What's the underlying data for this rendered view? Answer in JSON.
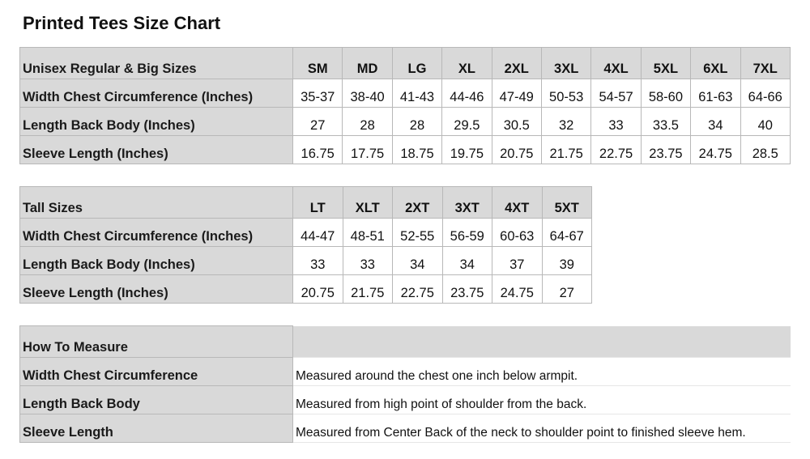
{
  "title": "Printed Tees Size Chart",
  "regular": {
    "header": "Unisex Regular & Big Sizes",
    "sizes": [
      "SM",
      "MD",
      "LG",
      "XL",
      "2XL",
      "3XL",
      "4XL",
      "5XL",
      "6XL",
      "7XL"
    ],
    "rows": [
      {
        "label": "Width Chest  Circumference (Inches)",
        "values": [
          "35-37",
          "38-40",
          "41-43",
          "44-46",
          "47-49",
          "50-53",
          "54-57",
          "58-60",
          "61-63",
          "64-66"
        ]
      },
      {
        "label": "Length Back Body (Inches)",
        "values": [
          "27",
          "28",
          "28",
          "29.5",
          "30.5",
          "32",
          "33",
          "33.5",
          "34",
          "40"
        ]
      },
      {
        "label": "Sleeve Length (Inches)",
        "values": [
          "16.75",
          "17.75",
          "18.75",
          "19.75",
          "20.75",
          "21.75",
          "22.75",
          "23.75",
          "24.75",
          "28.5"
        ]
      }
    ]
  },
  "tall": {
    "header": "Tall Sizes",
    "sizes": [
      "LT",
      "XLT",
      "2XT",
      "3XT",
      "4XT",
      "5XT"
    ],
    "rows": [
      {
        "label": "Width Chest  Circumference (Inches)",
        "values": [
          "44-47",
          "48-51",
          "52-55",
          "56-59",
          "60-63",
          "64-67"
        ]
      },
      {
        "label": "Length Back Body (Inches)",
        "values": [
          "33",
          "33",
          "34",
          "34",
          "37",
          "39"
        ]
      },
      {
        "label": "Sleeve Length (Inches)",
        "values": [
          "20.75",
          "21.75",
          "22.75",
          "23.75",
          "24.75",
          "27"
        ]
      }
    ]
  },
  "measure": {
    "header": "How To Measure",
    "rows": [
      {
        "label": "Width Chest  Circumference",
        "text": "Measured around the chest one inch below armpit."
      },
      {
        "label": "Length Back Body",
        "text": "Measured from high point of shoulder from the back."
      },
      {
        "label": "Sleeve Length",
        "text": "Measured from Center Back of the  neck to shoulder point to finished sleeve hem."
      }
    ]
  }
}
